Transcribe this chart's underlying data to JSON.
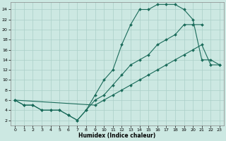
{
  "xlabel": "Humidex (Indice chaleur)",
  "bg_color": "#cce8e2",
  "grid_color": "#aacfc8",
  "line_color": "#1a6b5a",
  "xlim": [
    -0.5,
    23.5
  ],
  "ylim": [
    1.0,
    25.5
  ],
  "xticks": [
    0,
    1,
    2,
    3,
    4,
    5,
    6,
    7,
    8,
    9,
    10,
    11,
    12,
    13,
    14,
    15,
    16,
    17,
    18,
    19,
    20,
    21,
    22,
    23
  ],
  "yticks": [
    2,
    4,
    6,
    8,
    10,
    12,
    14,
    16,
    18,
    20,
    22,
    24
  ],
  "curve1_x": [
    0,
    1,
    2,
    3,
    4,
    5,
    6,
    7,
    8,
    9,
    10,
    11,
    12,
    13,
    14,
    15,
    16,
    17,
    18,
    19,
    20,
    21,
    22,
    23
  ],
  "curve1_y": [
    6,
    5,
    5,
    4,
    4,
    4,
    3,
    2,
    4,
    7,
    10,
    12,
    17,
    21,
    24,
    24,
    25,
    25,
    25,
    24,
    22,
    14,
    14,
    13
  ],
  "curve2_x": [
    0,
    1,
    2,
    3,
    4,
    5,
    6,
    7,
    8,
    9,
    10,
    11,
    12,
    13,
    14,
    15,
    16,
    17,
    18,
    19,
    20,
    21
  ],
  "curve2_y": [
    6,
    5,
    5,
    4,
    4,
    4,
    3,
    2,
    4,
    6,
    7,
    9,
    11,
    13,
    14,
    15,
    17,
    18,
    19,
    21,
    21,
    21
  ],
  "curve3_x": [
    0,
    9,
    10,
    11,
    12,
    13,
    14,
    15,
    16,
    17,
    18,
    19,
    20,
    21,
    22,
    23
  ],
  "curve3_y": [
    6,
    5,
    6,
    7,
    8,
    9,
    10,
    11,
    12,
    13,
    14,
    15,
    16,
    17,
    13,
    13
  ]
}
